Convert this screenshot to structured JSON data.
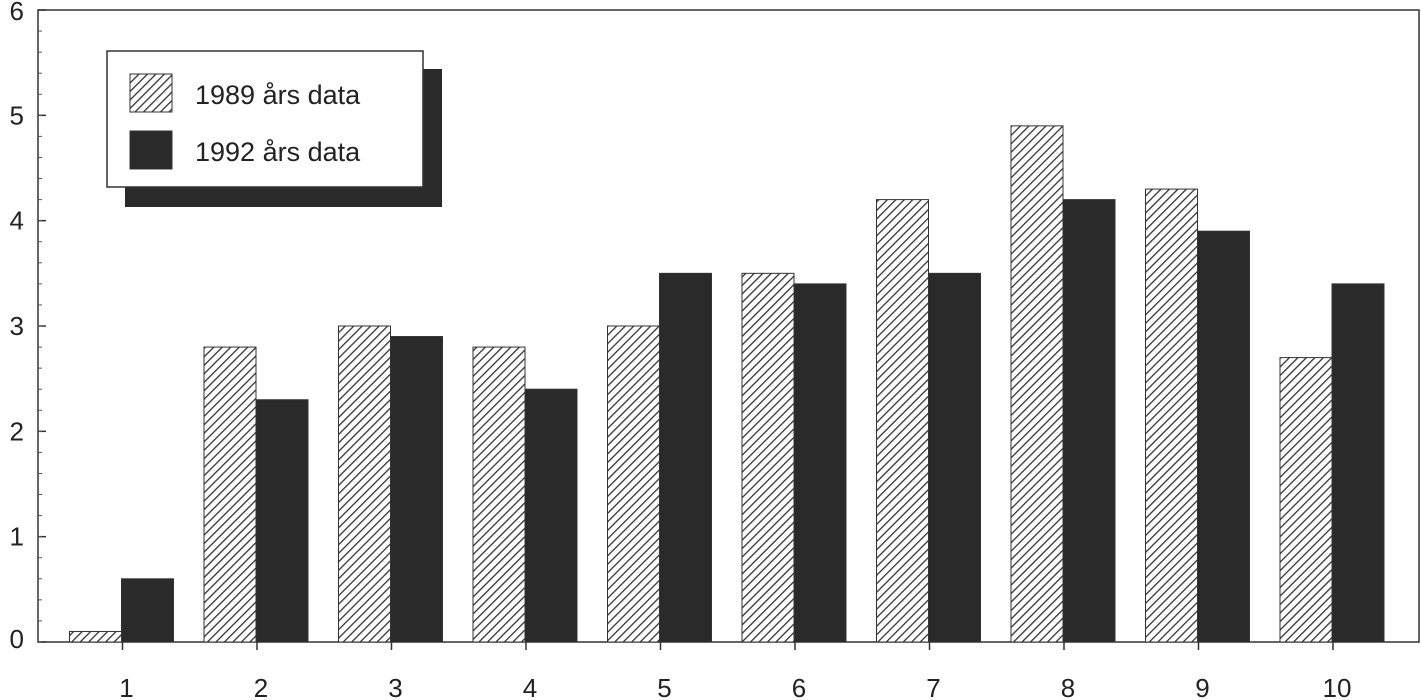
{
  "chart_data": {
    "type": "bar",
    "title": "",
    "xlabel": "",
    "ylabel": "",
    "categories": [
      "1",
      "2",
      "3",
      "4",
      "5",
      "6",
      "7",
      "8",
      "9",
      "10"
    ],
    "series": [
      {
        "name": "1989 års data",
        "values": [
          0.1,
          2.8,
          3.0,
          2.8,
          3.0,
          3.5,
          4.2,
          4.9,
          4.3,
          2.7
        ]
      },
      {
        "name": "1992 års data",
        "values": [
          0.6,
          2.3,
          2.9,
          2.4,
          3.5,
          3.4,
          3.5,
          4.2,
          3.9,
          3.4
        ]
      }
    ],
    "ylim": [
      0,
      6
    ],
    "yticks": [
      0,
      1,
      2,
      3,
      4,
      5,
      6
    ],
    "grid": false,
    "legend_position": "top-left",
    "colors": {
      "series_1989": "hatched-gray",
      "series_1992": "#2a2a2a"
    }
  }
}
